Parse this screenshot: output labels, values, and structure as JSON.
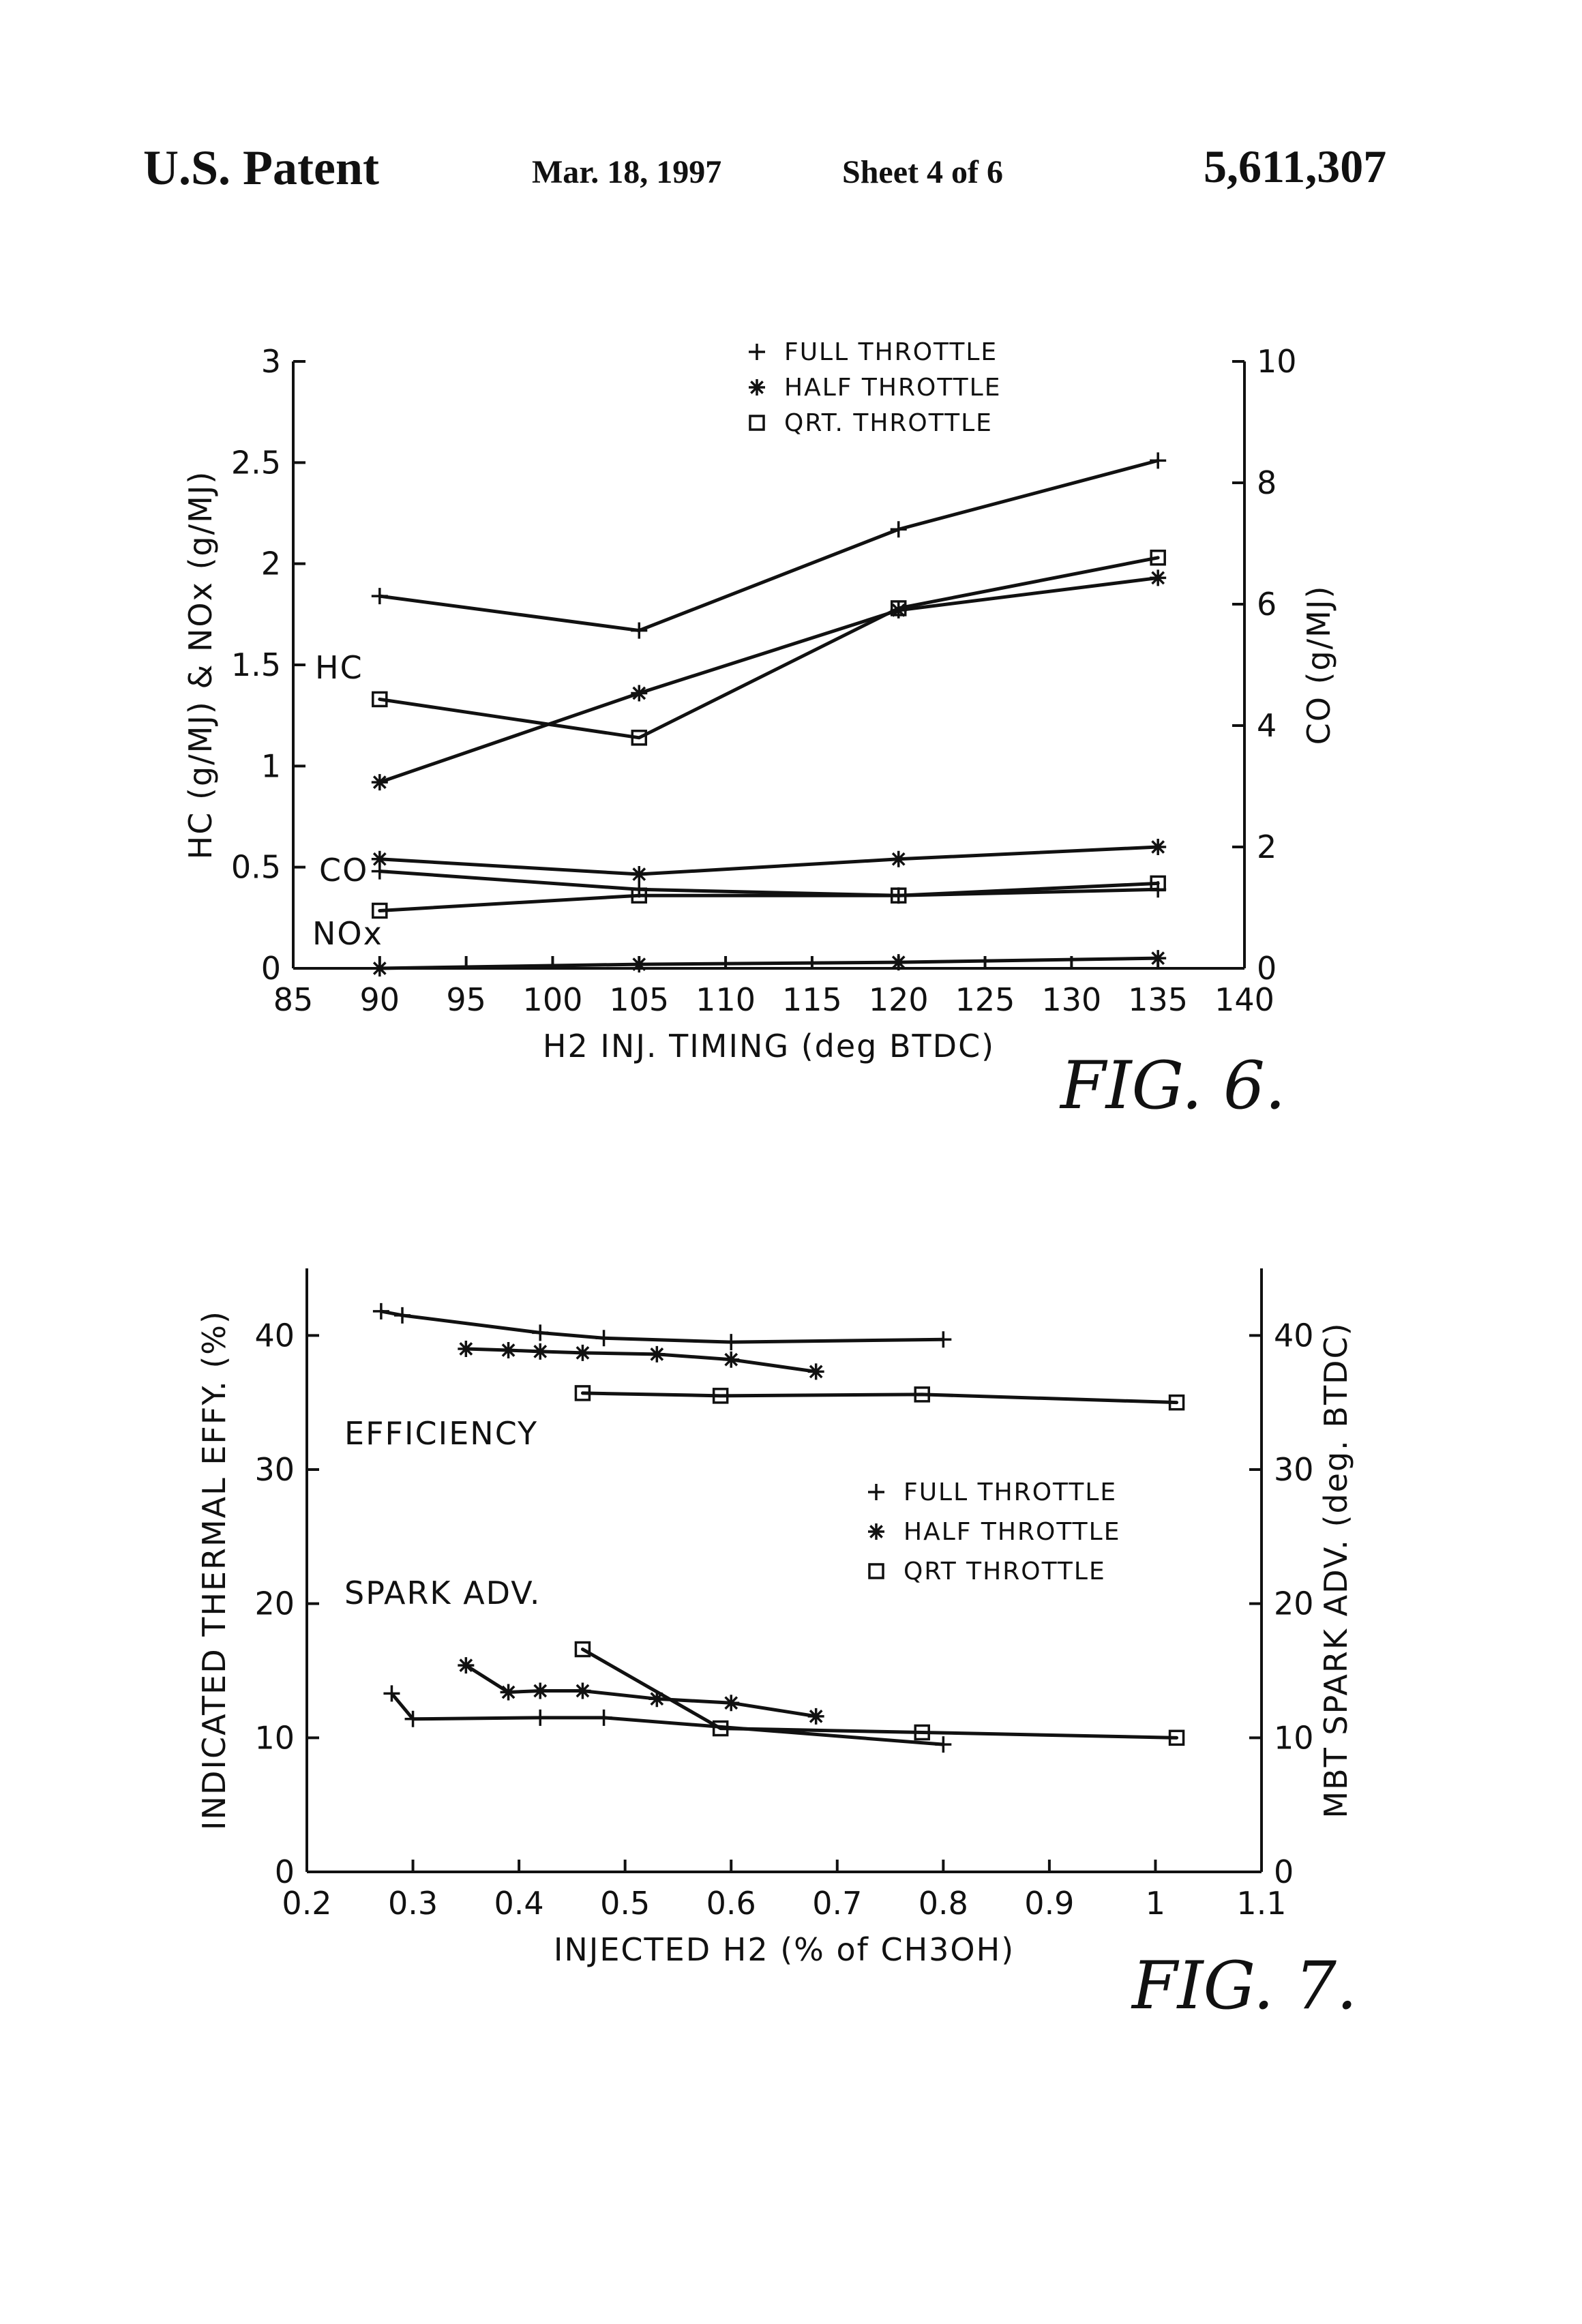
{
  "header": {
    "title": "U.S. Patent",
    "date": "Mar. 18, 1997",
    "sheet": "Sheet 4 of 6",
    "patent_number": "5,611,307"
  },
  "chart_data": [
    {
      "type": "line",
      "figure_label": "FIG. 6.",
      "xlabel": "H2 INJ. TIMING (deg BTDC)",
      "ylabel_left": "HC (g/MJ) & NOx (g/MJ)",
      "ylabel_right": "CO (g/MJ)",
      "xlim": [
        85,
        140
      ],
      "ylim_left": [
        0,
        3
      ],
      "ylim_right": [
        0,
        10
      ],
      "x_ticks": [
        "85",
        "90",
        "95",
        "100",
        "105",
        "110",
        "115",
        "120",
        "125",
        "130",
        "135",
        "140"
      ],
      "y_ticks_left": [
        "0",
        "0.5",
        "1",
        "1.5",
        "2",
        "2.5",
        "3"
      ],
      "y_ticks_right": [
        "0",
        "2",
        "4",
        "6",
        "8",
        "10"
      ],
      "legend": [
        {
          "marker": "+",
          "label": "FULL THROTTLE"
        },
        {
          "marker": "*",
          "label": "HALF THROTTLE"
        },
        {
          "marker": "□",
          "label": "QRT. THROTTLE"
        }
      ],
      "legend_position": "top-center",
      "annotations": [
        "HC",
        "CO",
        "NOx"
      ],
      "x": [
        90,
        105,
        120,
        135
      ],
      "series": [
        {
          "name": "",
          "group": "HC",
          "marker": "+",
          "axis": "left",
          "values": [
            1.84,
            1.67,
            2.17,
            2.51
          ]
        },
        {
          "name": "",
          "group": "HC",
          "marker": "*",
          "axis": "left",
          "values": [
            0.92,
            1.36,
            1.77,
            1.93
          ]
        },
        {
          "name": "",
          "group": "HC",
          "marker": "□",
          "axis": "left",
          "values": [
            1.33,
            1.14,
            1.78,
            2.03
          ]
        },
        {
          "name": "",
          "group": "CO",
          "marker": "+",
          "axis": "right",
          "values": [
            1.6,
            1.3,
            1.2,
            1.3
          ]
        },
        {
          "name": "",
          "group": "CO",
          "marker": "*",
          "axis": "right",
          "values": [
            1.8,
            1.55,
            1.8,
            2.0
          ]
        },
        {
          "name": "",
          "group": "CO",
          "marker": "□",
          "axis": "right",
          "values": [
            0.95,
            1.2,
            1.2,
            1.4
          ]
        },
        {
          "name": "",
          "group": "NOx",
          "marker": "*",
          "axis": "left",
          "values": [
            0.0,
            0.02,
            0.03,
            0.05
          ]
        }
      ],
      "grid": false
    },
    {
      "type": "line",
      "figure_label": "FIG. 7.",
      "xlabel": "INJECTED H2 (% of CH3OH)",
      "ylabel_left": "INDICATED THERMAL EFFY. (%)",
      "ylabel_right": "MBT SPARK ADV. (deg. BTDC)",
      "xlim": [
        0.2,
        1.1
      ],
      "ylim_left": [
        0,
        45
      ],
      "ylim_right": [
        0,
        45
      ],
      "x_ticks": [
        "0.2",
        "0.3",
        "0.4",
        "0.5",
        "0.6",
        "0.7",
        "0.8",
        "0.9",
        "1",
        "1.1"
      ],
      "y_ticks_left": [
        "0",
        "10",
        "20",
        "30",
        "40"
      ],
      "y_ticks_right": [
        "0",
        "10",
        "20",
        "30",
        "40"
      ],
      "legend": [
        {
          "marker": "+",
          "label": "FULL THROTTLE"
        },
        {
          "marker": "*",
          "label": "HALF THROTTLE"
        },
        {
          "marker": "□",
          "label": "QRT THROTTLE"
        }
      ],
      "legend_position": "center-right",
      "annotations": [
        "EFFICIENCY",
        "SPARK ADV."
      ],
      "series": [
        {
          "name": "",
          "group": "EFFICIENCY",
          "marker": "+",
          "x": [
            0.27,
            0.29,
            0.42,
            0.48,
            0.6,
            0.8
          ],
          "values": [
            41.8,
            41.5,
            40.2,
            39.8,
            39.5,
            39.7
          ]
        },
        {
          "name": "",
          "group": "EFFICIENCY",
          "marker": "*",
          "x": [
            0.35,
            0.39,
            0.42,
            0.46,
            0.53,
            0.6,
            0.68
          ],
          "values": [
            39.0,
            38.9,
            38.8,
            38.7,
            38.6,
            38.2,
            37.3
          ]
        },
        {
          "name": "",
          "group": "EFFICIENCY",
          "marker": "□",
          "x": [
            0.46,
            0.59,
            0.78,
            1.02
          ],
          "values": [
            35.7,
            35.5,
            35.6,
            35.0
          ]
        },
        {
          "name": "",
          "group": "SPARK ADV.",
          "marker": "+",
          "x": [
            0.28,
            0.3,
            0.42,
            0.48,
            0.8
          ],
          "values": [
            13.3,
            11.4,
            11.5,
            11.5,
            9.5
          ]
        },
        {
          "name": "",
          "group": "SPARK ADV.",
          "marker": "*",
          "x": [
            0.35,
            0.39,
            0.42,
            0.46,
            0.53,
            0.6,
            0.68
          ],
          "values": [
            15.4,
            13.4,
            13.5,
            13.5,
            12.9,
            12.6,
            11.6
          ]
        },
        {
          "name": "",
          "group": "SPARK ADV.",
          "marker": "□",
          "x": [
            0.46,
            0.59,
            0.78,
            1.02
          ],
          "values": [
            16.6,
            10.7,
            10.4,
            10.0
          ]
        }
      ],
      "grid": false
    }
  ]
}
